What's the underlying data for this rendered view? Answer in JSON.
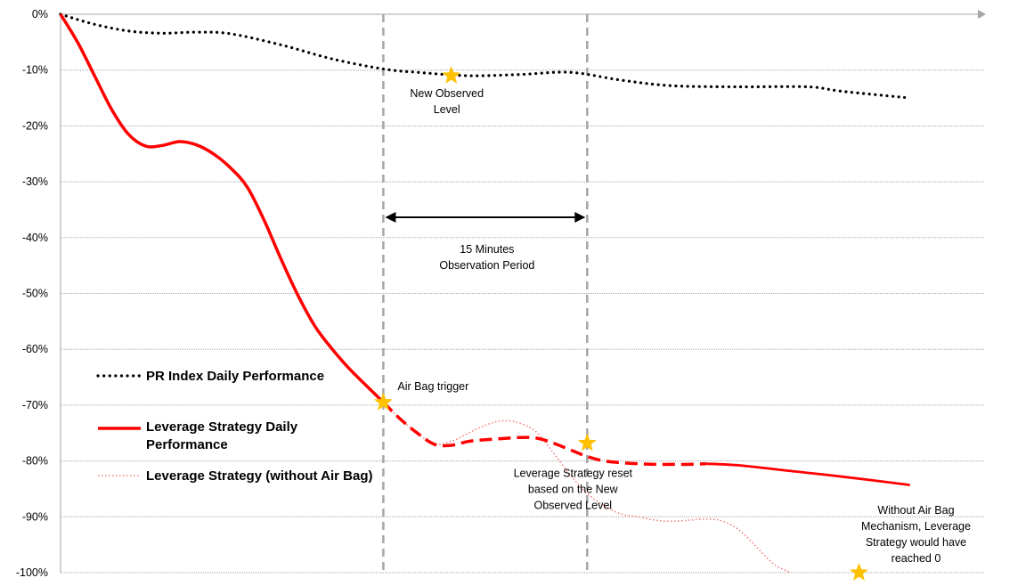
{
  "chart_data": {
    "type": "line",
    "yticks": [
      "0%",
      "-10%",
      "-20%",
      "-30%",
      "-40%",
      "-50%",
      "-60%",
      "-70%",
      "-80%",
      "-90%",
      "-100%"
    ],
    "ylim": [
      -100,
      0
    ],
    "grid": true,
    "legend_position": "left",
    "series": [
      {
        "name": "PR Index Daily Performance",
        "style": "dotted",
        "color": "#000000",
        "points": [
          [
            0,
            0
          ],
          [
            2,
            -1.8
          ],
          [
            4,
            -3
          ],
          [
            6,
            -3.4
          ],
          [
            8,
            -3.2
          ],
          [
            10,
            -3.5
          ],
          [
            13,
            -5.5
          ],
          [
            16,
            -8
          ],
          [
            19,
            -9.8
          ],
          [
            21,
            -10.4
          ],
          [
            24,
            -11
          ],
          [
            27,
            -10.8
          ],
          [
            30,
            -10.4
          ],
          [
            33,
            -11.8
          ],
          [
            36,
            -12.8
          ],
          [
            40,
            -13
          ],
          [
            44,
            -13
          ],
          [
            46,
            -13.8
          ],
          [
            50,
            -15
          ]
        ]
      },
      {
        "name": "Leverage Strategy Daily Performance",
        "style": "solid",
        "color": "#ff0000",
        "points": [
          [
            0,
            0
          ],
          [
            1,
            -5
          ],
          [
            2,
            -11
          ],
          [
            3,
            -17
          ],
          [
            4,
            -21.5
          ],
          [
            5,
            -23.6
          ],
          [
            6,
            -23.5
          ],
          [
            7,
            -22.8
          ],
          [
            8,
            -23.4
          ],
          [
            9,
            -25
          ],
          [
            10,
            -27.5
          ],
          [
            11,
            -31
          ],
          [
            12,
            -37
          ],
          [
            13,
            -44
          ],
          [
            14,
            -50.5
          ],
          [
            15,
            -56
          ],
          [
            16,
            -60
          ],
          [
            17,
            -63.5
          ],
          [
            18,
            -66.5
          ],
          [
            19,
            -69.5
          ],
          [
            20,
            -72.5
          ],
          [
            21,
            -75
          ],
          [
            22,
            -77
          ],
          [
            23,
            -77.2
          ],
          [
            24,
            -76.5
          ],
          [
            25,
            -76.2
          ],
          [
            26,
            -76
          ],
          [
            27,
            -75.8
          ],
          [
            28,
            -75.9
          ],
          [
            29,
            -76.8
          ],
          [
            30,
            -78
          ],
          [
            31,
            -79.2
          ],
          [
            32,
            -80
          ],
          [
            33,
            -80.3
          ],
          [
            34,
            -80.5
          ],
          [
            35,
            -80.6
          ],
          [
            36,
            -80.6
          ],
          [
            37,
            -80.6
          ],
          [
            38,
            -80.5
          ],
          [
            40,
            -80.8
          ],
          [
            43,
            -81.8
          ],
          [
            46,
            -82.8
          ],
          [
            50,
            -84.3
          ]
        ],
        "dashed_between": [
          19,
          38
        ]
      },
      {
        "name": "Leverage Strategy (without Air Bag)",
        "style": "dotted",
        "color": "#f08080",
        "points": [
          [
            19,
            -69.5
          ],
          [
            20,
            -72.5
          ],
          [
            21,
            -75
          ],
          [
            22,
            -77
          ],
          [
            23,
            -76.5
          ],
          [
            24,
            -75
          ],
          [
            25,
            -73.6
          ],
          [
            26,
            -72.8
          ],
          [
            27,
            -73.2
          ],
          [
            28,
            -74.8
          ],
          [
            29,
            -78.5
          ],
          [
            30,
            -82.5
          ],
          [
            31,
            -85.8
          ],
          [
            32,
            -88
          ],
          [
            33,
            -89.5
          ],
          [
            34,
            -90
          ],
          [
            35,
            -90.6
          ],
          [
            36,
            -90.8
          ],
          [
            37,
            -90.6
          ],
          [
            38,
            -90.4
          ],
          [
            39,
            -90.8
          ],
          [
            40,
            -92.5
          ],
          [
            41,
            -95.5
          ],
          [
            42,
            -98.5
          ],
          [
            43,
            -100
          ]
        ]
      }
    ],
    "reference_lines_x": [
      19,
      31
    ],
    "observation_period": {
      "from": 19,
      "to": 31,
      "label_lines": [
        "15 Minutes",
        "Observation Period"
      ]
    },
    "markers": [
      {
        "x": 23,
        "y": -11,
        "color": "#ffc000",
        "label_lines": [
          "New Observed",
          "Level"
        ]
      },
      {
        "x": 19,
        "y": -69.5,
        "color": "#ffc000",
        "label_lines": [
          "Air Bag trigger"
        ]
      },
      {
        "x": 31,
        "y": -76.8,
        "color": "#ffc000",
        "label_lines": [
          "Leverage Strategy reset",
          "based on the New",
          "Observed Level"
        ]
      },
      {
        "x": 47,
        "y": -100,
        "color": "#ffc000",
        "label_lines": [
          "Without Air Bag",
          "Mechanism, Leverage",
          "Strategy would have",
          "reached 0"
        ]
      }
    ],
    "x_min": 0,
    "x_max": 54
  }
}
